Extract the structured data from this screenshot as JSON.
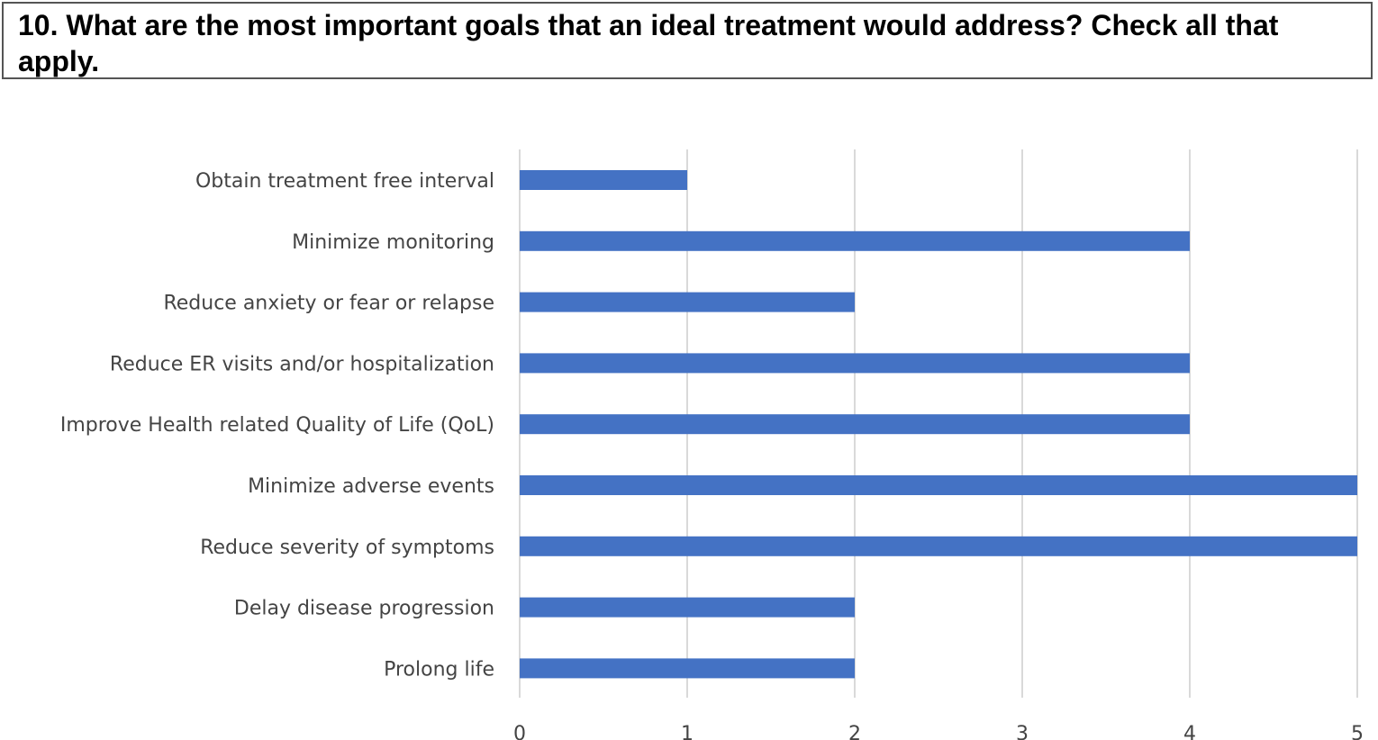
{
  "question": {
    "text": "10. What are the most important goals that an ideal treatment would address? Check all that apply."
  },
  "colors": {
    "bar": "#4472C4",
    "grid": "#D9D9D9",
    "label": "#444444"
  },
  "chart_data": {
    "type": "bar",
    "orientation": "horizontal",
    "title": "10. What are the most important goals that an ideal treatment would address? Check all that apply.",
    "xlabel": "",
    "ylabel": "",
    "categories": [
      "Obtain treatment free interval",
      "Minimize monitoring",
      "Reduce anxiety or fear or relapse",
      "Reduce ER visits and/or hospitalization",
      "Improve Health related Quality of Life (QoL)",
      "Minimize adverse events",
      "Reduce severity of symptoms",
      "Delay disease progression",
      "Prolong life"
    ],
    "values": [
      1,
      4,
      2,
      4,
      4,
      5,
      5,
      2,
      2
    ],
    "xlim": [
      0,
      5
    ],
    "xticks": [
      "0",
      "1",
      "2",
      "3",
      "4",
      "5"
    ],
    "grid": true,
    "legend": "none"
  }
}
